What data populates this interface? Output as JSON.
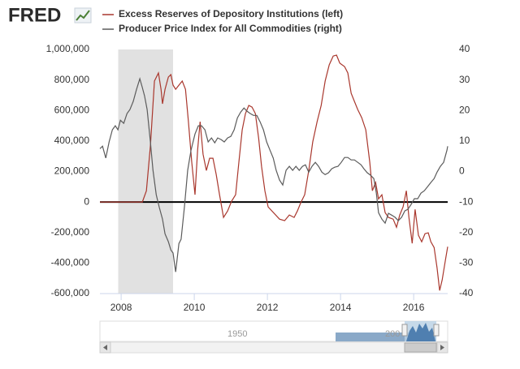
{
  "logo": "FRED",
  "chart_data": {
    "type": "line",
    "xlim": [
      2007.42,
      2016.93
    ],
    "xticks": [
      2008,
      2010,
      2012,
      2014,
      2016
    ],
    "ylim": [
      -600000,
      1000000
    ],
    "yticks": [
      {
        "value": -600000,
        "label": "-600,000"
      },
      {
        "value": -400000,
        "label": "-400,000"
      },
      {
        "value": -200000,
        "label": "-200,000"
      },
      0,
      {
        "value": 200000,
        "label": "200,000"
      },
      {
        "value": 400000,
        "label": "400,000"
      },
      {
        "value": 600000,
        "label": "600,000"
      },
      {
        "value": 800000,
        "label": "800,000"
      },
      {
        "value": 1000000,
        "label": "1,000,000"
      }
    ],
    "y2lim": [
      -40,
      40
    ],
    "y2ticks": [
      -40,
      -30,
      -20,
      -10,
      0,
      10,
      20,
      30,
      40
    ],
    "shaded_ranges": [
      [
        2007.92,
        2009.42
      ]
    ],
    "navigator_labels": [
      "1950",
      "200"
    ],
    "series": [
      {
        "name": "Excess Reserves of Depository Institutions (left)",
        "color": "#a9372d",
        "x": [
          2007.42,
          2008.58,
          2008.69,
          2008.8,
          2008.91,
          2009.02,
          2009.09,
          2009.13,
          2009.2,
          2009.29,
          2009.36,
          2009.42,
          2009.49,
          2009.58,
          2009.67,
          2009.76,
          2009.84,
          2009.93,
          2010.02,
          2010.09,
          2010.16,
          2010.24,
          2010.33,
          2010.42,
          2010.51,
          2010.6,
          2010.69,
          2010.8,
          2010.91,
          2011.02,
          2011.13,
          2011.22,
          2011.31,
          2011.4,
          2011.49,
          2011.58,
          2011.67,
          2011.76,
          2011.84,
          2011.93,
          2012.02,
          2012.33,
          2012.47,
          2012.6,
          2012.73,
          2012.82,
          2012.91,
          2013.02,
          2013.13,
          2013.24,
          2013.36,
          2013.47,
          2013.58,
          2013.69,
          2013.8,
          2013.89,
          2013.98,
          2014.11,
          2014.2,
          2014.29,
          2014.38,
          2014.47,
          2014.58,
          2014.69,
          2014.8,
          2014.87,
          2014.96,
          2015.04,
          2015.13,
          2015.22,
          2015.31,
          2015.44,
          2015.53,
          2015.62,
          2015.71,
          2015.8,
          2015.87,
          2015.96,
          2016.04,
          2016.13,
          2016.22,
          2016.31,
          2016.4,
          2016.47,
          2016.56,
          2016.64,
          2016.71,
          2016.78,
          2016.87,
          2016.93
        ],
        "values": [
          0,
          0,
          74000,
          367000,
          793000,
          846000,
          739000,
          644000,
          739000,
          819000,
          835000,
          766000,
          739000,
          766000,
          793000,
          739000,
          527000,
          261000,
          48000,
          340000,
          527000,
          314000,
          207000,
          287000,
          287000,
          181000,
          48000,
          -101000,
          -59000,
          5000,
          48000,
          261000,
          473000,
          580000,
          633000,
          622000,
          580000,
          420000,
          234000,
          74000,
          -32000,
          -112000,
          -122000,
          -85000,
          -101000,
          -59000,
          -5000,
          48000,
          207000,
          394000,
          527000,
          633000,
          793000,
          899000,
          957000,
          963000,
          910000,
          888000,
          846000,
          713000,
          660000,
          606000,
          553000,
          473000,
          261000,
          74000,
          128000,
          21000,
          48000,
          -69000,
          -101000,
          -112000,
          -165000,
          -85000,
          -32000,
          74000,
          -101000,
          -271000,
          -48000,
          -218000,
          -261000,
          -207000,
          -202000,
          -261000,
          -298000,
          -431000,
          -580000,
          -511000,
          -378000,
          -293000
        ]
      },
      {
        "name": "Producer Price Index for All Commodities (right)",
        "color": "#5b5b5b",
        "axis": "y2",
        "x": [
          2007.42,
          2007.49,
          2007.58,
          2007.67,
          2007.76,
          2007.84,
          2007.91,
          2007.98,
          2008.07,
          2008.16,
          2008.24,
          2008.33,
          2008.42,
          2008.51,
          2008.58,
          2008.64,
          2008.71,
          2008.8,
          2008.87,
          2008.96,
          2009.04,
          2009.13,
          2009.2,
          2009.29,
          2009.36,
          2009.42,
          2009.49,
          2009.58,
          2009.64,
          2009.73,
          2009.82,
          2009.91,
          2010.02,
          2010.11,
          2010.2,
          2010.29,
          2010.38,
          2010.47,
          2010.56,
          2010.64,
          2010.73,
          2010.82,
          2010.91,
          2011.0,
          2011.09,
          2011.18,
          2011.27,
          2011.36,
          2011.44,
          2011.53,
          2011.62,
          2011.71,
          2011.8,
          2011.89,
          2011.98,
          2012.07,
          2012.16,
          2012.24,
          2012.33,
          2012.42,
          2012.51,
          2012.6,
          2012.69,
          2012.78,
          2012.87,
          2012.96,
          2013.04,
          2013.13,
          2013.22,
          2013.31,
          2013.4,
          2013.49,
          2013.58,
          2013.67,
          2013.76,
          2013.84,
          2013.93,
          2014.02,
          2014.11,
          2014.2,
          2014.29,
          2014.38,
          2014.47,
          2014.56,
          2014.64,
          2014.73,
          2014.82,
          2014.91,
          2014.98,
          2015.04,
          2015.13,
          2015.22,
          2015.31,
          2015.4,
          2015.49,
          2015.58,
          2015.67,
          2015.76,
          2015.84,
          2015.93,
          2016.02,
          2016.11,
          2016.2,
          2016.29,
          2016.38,
          2016.47,
          2016.56,
          2016.64,
          2016.73,
          2016.82,
          2016.91,
          2016.93
        ],
        "values": [
          7.5,
          8.3,
          4.4,
          9.7,
          13.7,
          15.0,
          13.7,
          16.8,
          15.8,
          19.0,
          20.3,
          23.0,
          26.9,
          30.4,
          27.5,
          24.8,
          20.3,
          9.7,
          0.4,
          -7.6,
          -11.6,
          -15.6,
          -20.4,
          -23.0,
          -25.7,
          -26.7,
          -32.9,
          -23.6,
          -22.2,
          -11.6,
          0.4,
          7.0,
          12.3,
          15.0,
          15.0,
          13.7,
          9.7,
          11.0,
          9.4,
          11.0,
          10.5,
          9.7,
          11.0,
          11.5,
          13.7,
          17.6,
          19.5,
          20.8,
          19.8,
          19.0,
          18.4,
          18.4,
          16.3,
          13.7,
          9.7,
          7.0,
          4.4,
          0.4,
          -2.8,
          -4.4,
          0.4,
          1.7,
          0.4,
          1.7,
          0.4,
          1.7,
          2.2,
          -0.2,
          1.7,
          3.0,
          1.7,
          -0.2,
          -1.0,
          -0.4,
          0.9,
          1.4,
          1.7,
          3.0,
          4.6,
          4.6,
          3.8,
          3.8,
          3.0,
          2.2,
          0.9,
          -0.4,
          -1.2,
          -2.3,
          -7.1,
          -13.5,
          -15.6,
          -16.9,
          -13.7,
          -14.3,
          -15.0,
          -16.1,
          -15.0,
          -12.9,
          -12.4,
          -10.8,
          -8.9,
          -8.9,
          -7.1,
          -6.3,
          -5.0,
          -3.6,
          -2.3,
          -0.2,
          1.7,
          3.0,
          7.0,
          8.3
        ]
      }
    ]
  }
}
